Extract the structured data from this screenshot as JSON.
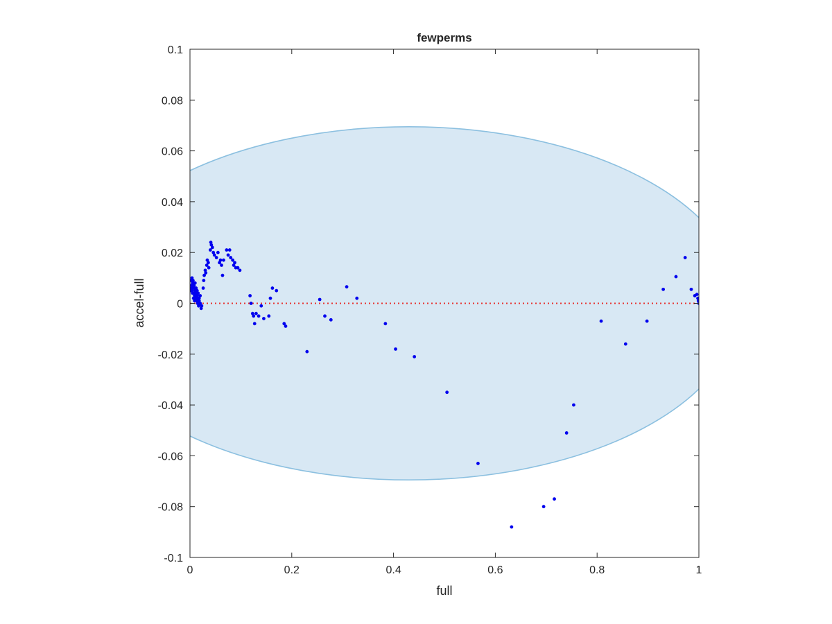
{
  "chart_data": {
    "type": "scatter",
    "title": "fewperms",
    "xlabel": "full",
    "ylabel": "accel-full",
    "xlim": [
      0,
      1
    ],
    "ylim": [
      -0.1,
      0.1
    ],
    "xticks": [
      0,
      0.2,
      0.4,
      0.6,
      0.8,
      1
    ],
    "xtick_labels": [
      "0",
      "0.2",
      "0.4",
      "0.6",
      "0.8",
      "1"
    ],
    "yticks": [
      -0.1,
      -0.08,
      -0.06,
      -0.04,
      -0.02,
      0,
      0.02,
      0.04,
      0.06,
      0.08,
      0.1
    ],
    "ytick_labels": [
      "-0.1",
      "-0.08",
      "-0.06",
      "-0.04",
      "-0.02",
      "0",
      "0.02",
      "0.04",
      "0.06",
      "0.08",
      "0.1"
    ],
    "grid": false,
    "reference_line": {
      "y": 0,
      "style": "dotted",
      "color": "#e8322f"
    },
    "shaded_region": {
      "shape": "ellipse",
      "fill": "#d8e8f4",
      "stroke": "#8cc0e0",
      "x_min": 0,
      "x_max": 1,
      "center_x": 0.43,
      "center_y": 0,
      "half_height": 0.0695
    },
    "colors": {
      "points": "#0000ee"
    },
    "series": [
      {
        "points": [
          [
            0.002,
            0.009
          ],
          [
            0.003,
            0.007
          ],
          [
            0.004,
            0.005
          ],
          [
            0.005,
            0.008
          ],
          [
            0.006,
            0.006
          ],
          [
            0.007,
            0.004
          ],
          [
            0.008,
            0.007
          ],
          [
            0.009,
            0.003
          ],
          [
            0.01,
            0.005
          ],
          [
            0.011,
            0.002
          ],
          [
            0.012,
            0.004
          ],
          [
            0.013,
            0.001
          ],
          [
            0.014,
            0.003
          ],
          [
            0.015,
            0.0
          ],
          [
            0.016,
            0.002
          ],
          [
            0.017,
            -0.001
          ],
          [
            0.018,
            0.001
          ],
          [
            0.02,
            0.0
          ],
          [
            0.022,
            -0.002
          ],
          [
            0.023,
            -0.001
          ],
          [
            0.004,
            0.01
          ],
          [
            0.006,
            0.009
          ],
          [
            0.008,
            0.006
          ],
          [
            0.01,
            0.008
          ],
          [
            0.012,
            0.006
          ],
          [
            0.014,
            0.005
          ],
          [
            0.016,
            0.004
          ],
          [
            0.018,
            0.002
          ],
          [
            0.02,
            0.003
          ],
          [
            0.001,
            0.005
          ],
          [
            0.003,
            0.006
          ],
          [
            0.005,
            0.004
          ],
          [
            0.007,
            0.002
          ],
          [
            0.009,
            0.001
          ],
          [
            0.026,
            0.006
          ],
          [
            0.027,
            0.009
          ],
          [
            0.028,
            0.011
          ],
          [
            0.03,
            0.013
          ],
          [
            0.031,
            0.012
          ],
          [
            0.033,
            0.015
          ],
          [
            0.034,
            0.017
          ],
          [
            0.036,
            0.016
          ],
          [
            0.037,
            0.014
          ],
          [
            0.04,
            0.021
          ],
          [
            0.041,
            0.024
          ],
          [
            0.042,
            0.023
          ],
          [
            0.044,
            0.022
          ],
          [
            0.046,
            0.02
          ],
          [
            0.048,
            0.019
          ],
          [
            0.052,
            0.018
          ],
          [
            0.055,
            0.02
          ],
          [
            0.058,
            0.016
          ],
          [
            0.06,
            0.017
          ],
          [
            0.062,
            0.015
          ],
          [
            0.064,
            0.011
          ],
          [
            0.066,
            0.017
          ],
          [
            0.072,
            0.021
          ],
          [
            0.075,
            0.019
          ],
          [
            0.078,
            0.021
          ],
          [
            0.08,
            0.018
          ],
          [
            0.084,
            0.017
          ],
          [
            0.086,
            0.015
          ],
          [
            0.088,
            0.016
          ],
          [
            0.09,
            0.014
          ],
          [
            0.094,
            0.014
          ],
          [
            0.098,
            0.013
          ],
          [
            0.118,
            0.003
          ],
          [
            0.12,
            0.0
          ],
          [
            0.123,
            -0.004
          ],
          [
            0.125,
            -0.005
          ],
          [
            0.127,
            -0.008
          ],
          [
            0.13,
            -0.004
          ],
          [
            0.135,
            -0.005
          ],
          [
            0.14,
            -0.001
          ],
          [
            0.145,
            -0.006
          ],
          [
            0.155,
            -0.005
          ],
          [
            0.158,
            0.002
          ],
          [
            0.162,
            0.006
          ],
          [
            0.17,
            0.005
          ],
          [
            0.185,
            -0.008
          ],
          [
            0.188,
            -0.009
          ],
          [
            0.23,
            -0.019
          ],
          [
            0.255,
            0.0015
          ],
          [
            0.265,
            -0.005
          ],
          [
            0.277,
            -0.0065
          ],
          [
            0.308,
            0.0065
          ],
          [
            0.328,
            0.002
          ],
          [
            0.384,
            -0.008
          ],
          [
            0.404,
            -0.018
          ],
          [
            0.441,
            -0.021
          ],
          [
            0.505,
            -0.035
          ],
          [
            0.566,
            -0.063
          ],
          [
            0.632,
            -0.088
          ],
          [
            0.695,
            -0.08
          ],
          [
            0.716,
            -0.077
          ],
          [
            0.74,
            -0.051
          ],
          [
            0.754,
            -0.04
          ],
          [
            0.808,
            -0.007
          ],
          [
            0.856,
            -0.016
          ],
          [
            0.898,
            -0.007
          ],
          [
            0.93,
            0.0055
          ],
          [
            0.955,
            0.0105
          ],
          [
            0.973,
            0.018
          ],
          [
            0.985,
            0.0055
          ],
          [
            0.992,
            0.003
          ],
          [
            0.996,
            0.0035
          ],
          [
            0.998,
            0.002
          ],
          [
            0.999,
            0.001
          ],
          [
            1.0,
            0.0
          ]
        ]
      }
    ]
  }
}
